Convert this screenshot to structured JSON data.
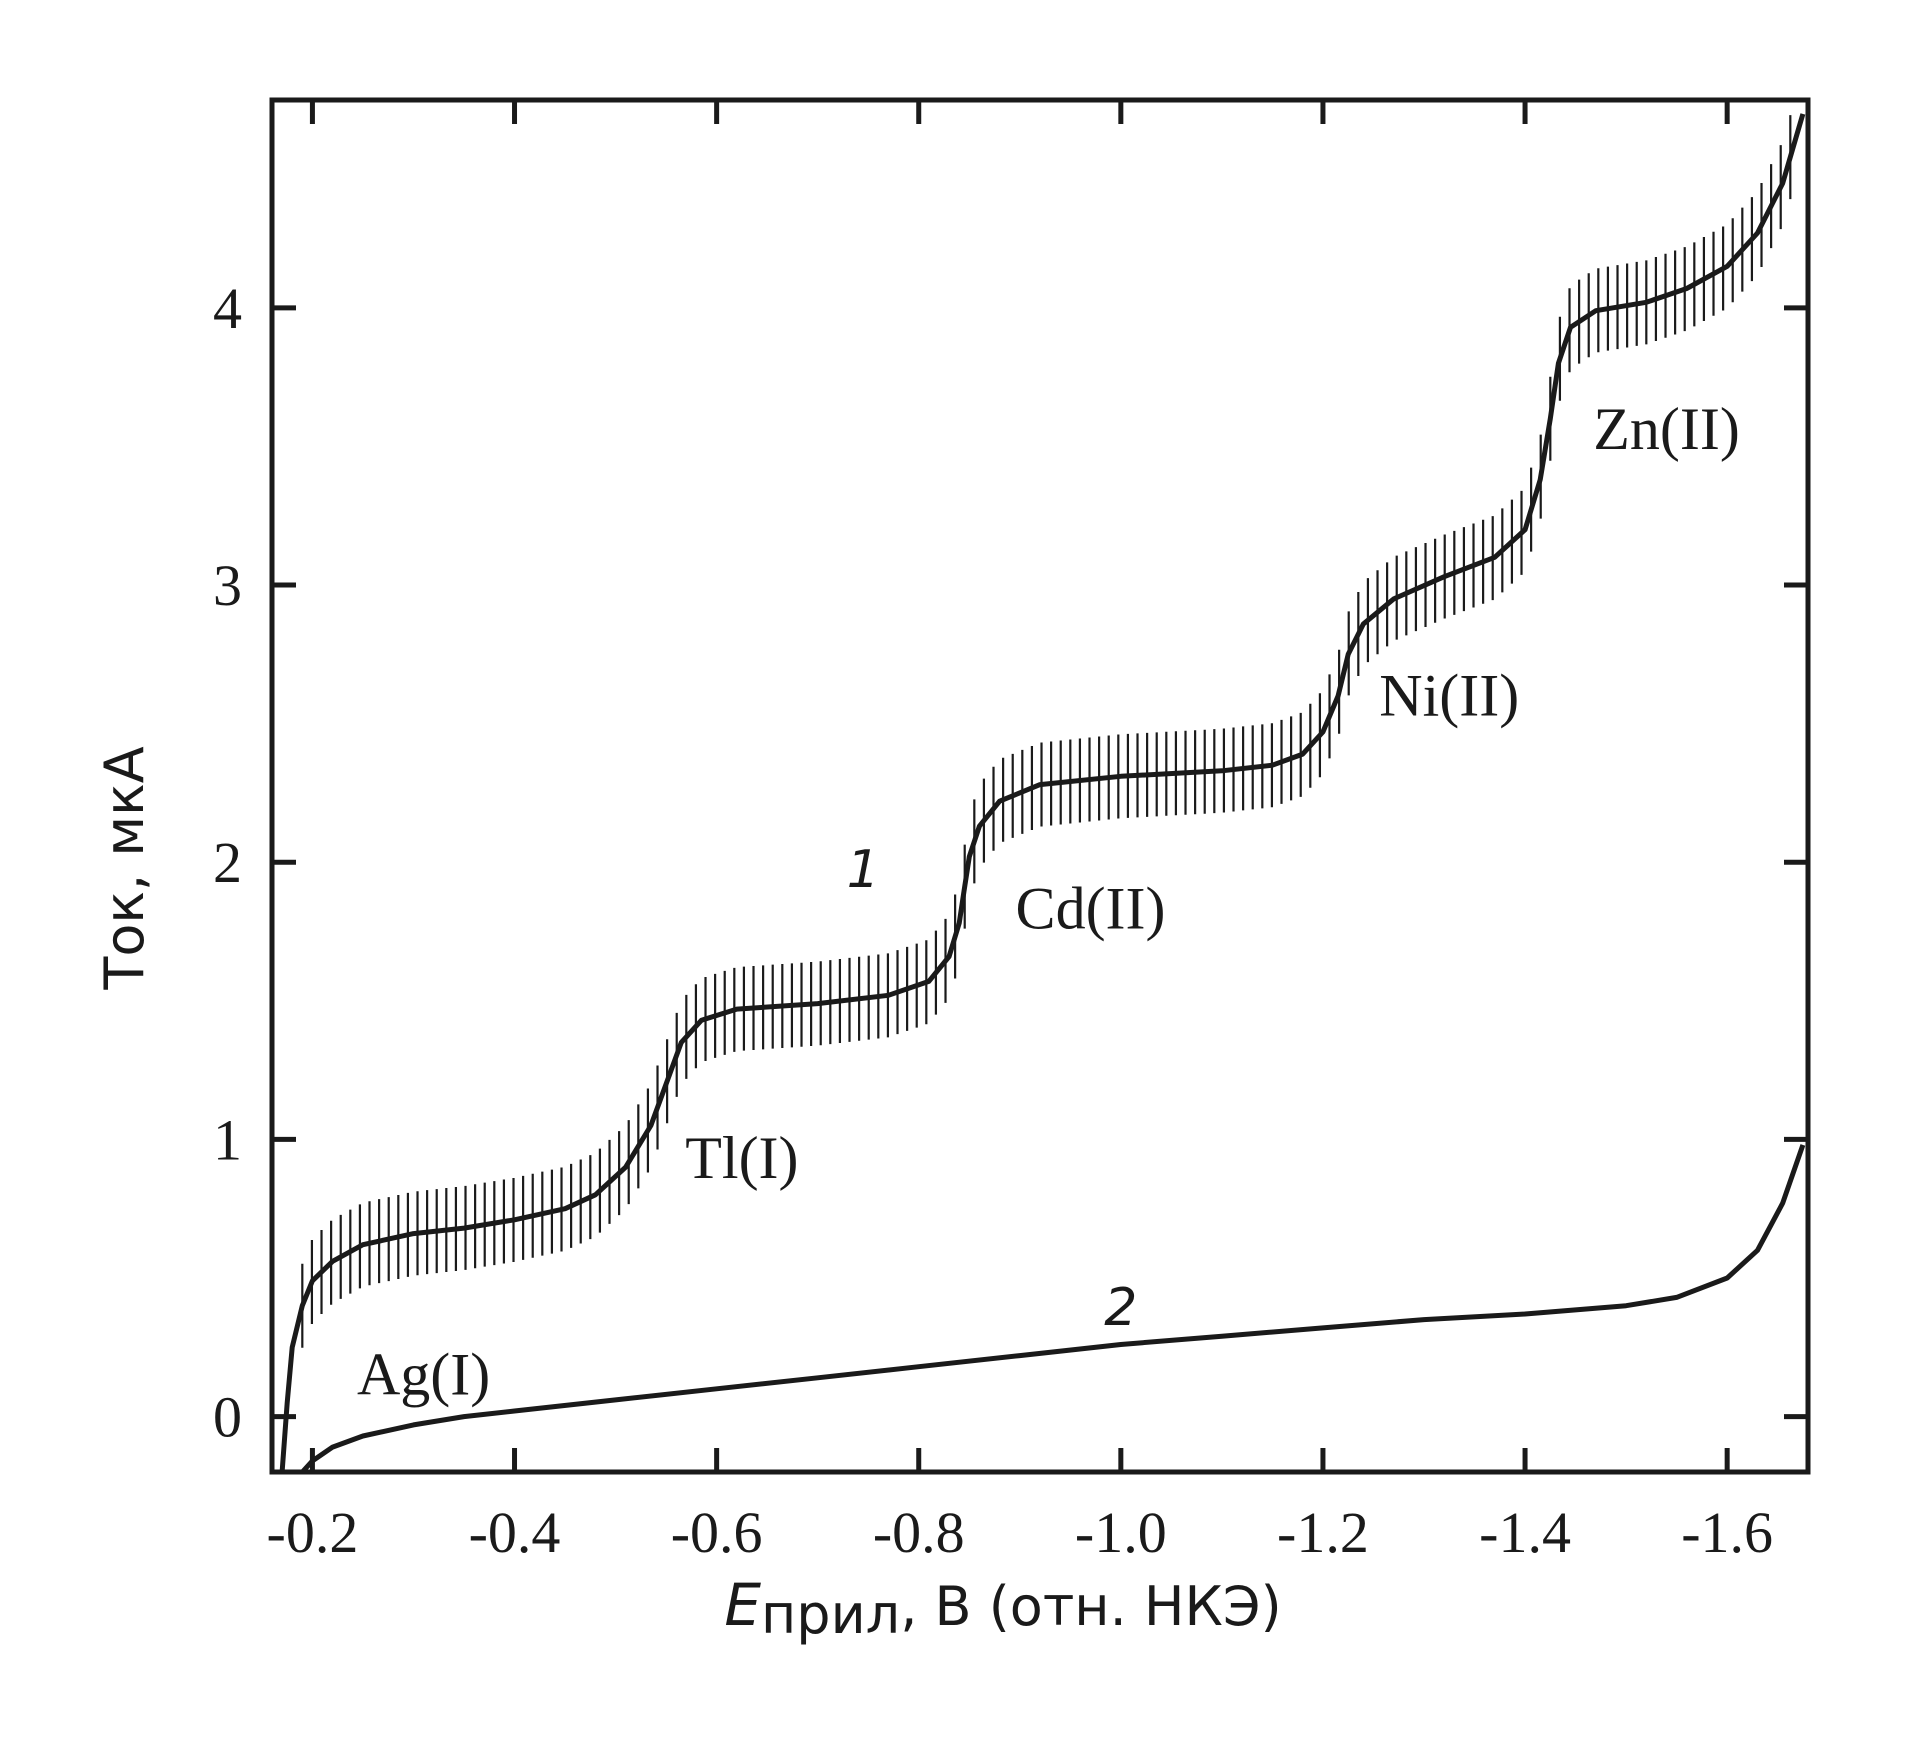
{
  "chart_data": {
    "type": "line",
    "title": "",
    "xlabel": {
      "main": "E",
      "subscript": "прил",
      "rest": ", В (отн. НКЭ)"
    },
    "ylabel": "Ток, мкА",
    "xlim": [
      -0.16,
      -1.68
    ],
    "ylim": [
      -0.2,
      4.75
    ],
    "x_reversed": true,
    "x_ticks": [
      -0.2,
      -0.4,
      -0.6,
      -0.8,
      -1.0,
      -1.2,
      -1.4,
      -1.6
    ],
    "x_tick_labels": [
      "-0.2",
      "-0.4",
      "-0.6",
      "-0.8",
      "-1.0",
      "-1.2",
      "-1.4",
      "-1.6"
    ],
    "y_ticks": [
      0,
      1,
      2,
      3,
      4
    ],
    "y_tick_labels": [
      "0",
      "1",
      "2",
      "3",
      "4"
    ],
    "grid": false,
    "series": [
      {
        "name": "1",
        "oscillation": "sampled-current (polarographic) vertical hatch marks",
        "points": [
          [
            -0.17,
            -0.2
          ],
          [
            -0.175,
            0.05
          ],
          [
            -0.18,
            0.25
          ],
          [
            -0.19,
            0.4
          ],
          [
            -0.2,
            0.49
          ],
          [
            -0.22,
            0.56
          ],
          [
            -0.25,
            0.62
          ],
          [
            -0.3,
            0.66
          ],
          [
            -0.35,
            0.68
          ],
          [
            -0.4,
            0.71
          ],
          [
            -0.45,
            0.75
          ],
          [
            -0.48,
            0.8
          ],
          [
            -0.51,
            0.9
          ],
          [
            -0.535,
            1.05
          ],
          [
            -0.55,
            1.2
          ],
          [
            -0.565,
            1.35
          ],
          [
            -0.585,
            1.43
          ],
          [
            -0.62,
            1.47
          ],
          [
            -0.7,
            1.49
          ],
          [
            -0.77,
            1.52
          ],
          [
            -0.81,
            1.57
          ],
          [
            -0.83,
            1.66
          ],
          [
            -0.84,
            1.78
          ],
          [
            -0.845,
            1.9
          ],
          [
            -0.85,
            2.02
          ],
          [
            -0.86,
            2.13
          ],
          [
            -0.88,
            2.22
          ],
          [
            -0.92,
            2.28
          ],
          [
            -1.0,
            2.31
          ],
          [
            -1.1,
            2.33
          ],
          [
            -1.15,
            2.35
          ],
          [
            -1.18,
            2.39
          ],
          [
            -1.2,
            2.47
          ],
          [
            -1.215,
            2.6
          ],
          [
            -1.225,
            2.75
          ],
          [
            -1.24,
            2.86
          ],
          [
            -1.27,
            2.95
          ],
          [
            -1.32,
            3.03
          ],
          [
            -1.37,
            3.1
          ],
          [
            -1.4,
            3.2
          ],
          [
            -1.415,
            3.38
          ],
          [
            -1.425,
            3.6
          ],
          [
            -1.433,
            3.8
          ],
          [
            -1.445,
            3.93
          ],
          [
            -1.47,
            3.99
          ],
          [
            -1.52,
            4.02
          ],
          [
            -1.56,
            4.07
          ],
          [
            -1.6,
            4.15
          ],
          [
            -1.63,
            4.27
          ],
          [
            -1.655,
            4.45
          ],
          [
            -1.675,
            4.7
          ]
        ]
      },
      {
        "name": "2",
        "points": [
          [
            -0.19,
            -0.2
          ],
          [
            -0.2,
            -0.16
          ],
          [
            -0.22,
            -0.11
          ],
          [
            -0.25,
            -0.07
          ],
          [
            -0.3,
            -0.03
          ],
          [
            -0.35,
            0.0
          ],
          [
            -0.4,
            0.02
          ],
          [
            -0.5,
            0.06
          ],
          [
            -0.6,
            0.1
          ],
          [
            -0.7,
            0.14
          ],
          [
            -0.8,
            0.18
          ],
          [
            -0.9,
            0.22
          ],
          [
            -1.0,
            0.26
          ],
          [
            -1.1,
            0.29
          ],
          [
            -1.2,
            0.32
          ],
          [
            -1.3,
            0.35
          ],
          [
            -1.4,
            0.37
          ],
          [
            -1.5,
            0.4
          ],
          [
            -1.55,
            0.43
          ],
          [
            -1.6,
            0.5
          ],
          [
            -1.63,
            0.6
          ],
          [
            -1.655,
            0.77
          ],
          [
            -1.675,
            0.98
          ]
        ]
      }
    ],
    "annotations": [
      {
        "text": "Ag(I)",
        "x": -0.31,
        "y": 0.08
      },
      {
        "text": "Tl(I)",
        "x": -0.625,
        "y": 0.86
      },
      {
        "text": "Cd(II)",
        "x": -0.97,
        "y": 1.76
      },
      {
        "text": "Ni(II)",
        "x": -1.325,
        "y": 2.53
      },
      {
        "text": "Zn(II)",
        "x": -1.54,
        "y": 3.49
      },
      {
        "text": "1",
        "x": -0.745,
        "y": 1.91
      },
      {
        "text": "2",
        "x": -1.0,
        "y": 0.33
      }
    ]
  }
}
